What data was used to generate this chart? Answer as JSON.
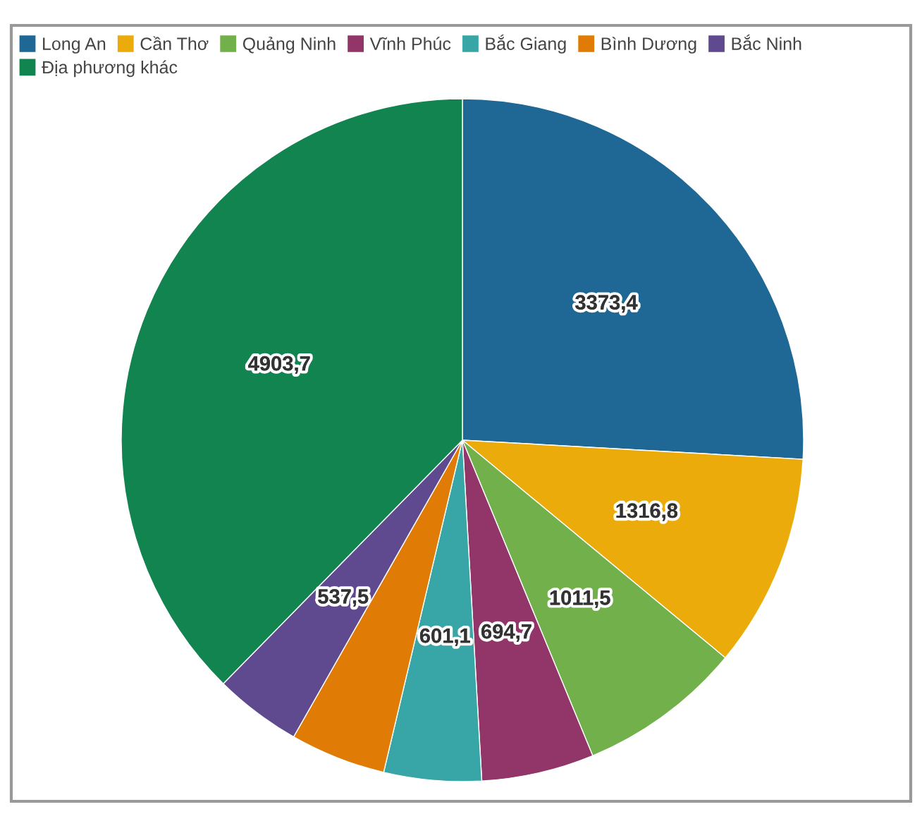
{
  "chart_data": {
    "type": "pie",
    "categories": [
      "Long An",
      "Cần Thơ",
      "Quảng Ninh",
      "Vĩnh Phúc",
      "Bắc Giang",
      "Bình Dương",
      "Bắc Ninh",
      "Địa phương khác"
    ],
    "values": [
      3373.4,
      1316.8,
      1011.5,
      694.7,
      601.1,
      590,
      537.5,
      4903.7
    ],
    "value_labels": [
      "3373,4",
      "1316,8",
      "1011,5",
      "694,7",
      "601,1",
      null,
      "537,5",
      "4903,7"
    ],
    "colors": [
      "#1f6896",
      "#ebab0b",
      "#72b04b",
      "#923569",
      "#38a6a6",
      "#e07b05",
      "#5f4a8f",
      "#11844f"
    ],
    "legend": "top"
  }
}
